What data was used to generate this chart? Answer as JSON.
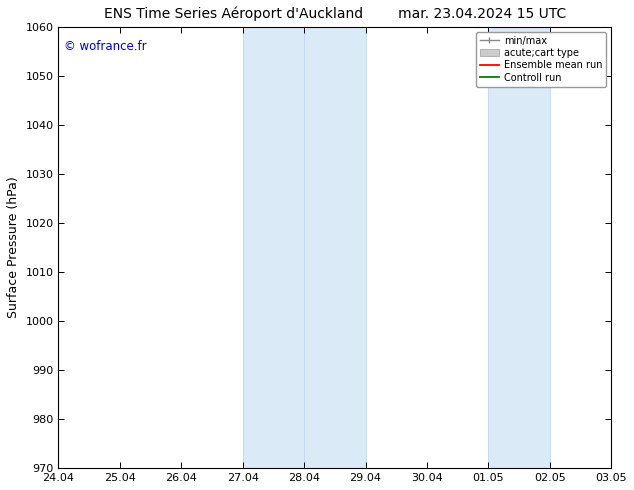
{
  "title_left": "ENS Time Series Aéroport d'Auckland",
  "title_right": "mar. 23.04.2024 15 UTC",
  "ylabel": "Surface Pressure (hPa)",
  "watermark": "© wofrance.fr",
  "watermark_color": "#0000cc",
  "ylim": [
    970,
    1060
  ],
  "yticks": [
    970,
    980,
    990,
    1000,
    1010,
    1020,
    1030,
    1040,
    1050,
    1060
  ],
  "xtick_labels": [
    "24.04",
    "25.04",
    "26.04",
    "27.04",
    "28.04",
    "29.04",
    "30.04",
    "01.05",
    "02.05",
    "03.05"
  ],
  "xtick_positions": [
    0,
    1,
    2,
    3,
    4,
    5,
    6,
    7,
    8,
    9
  ],
  "xlim": [
    0,
    9
  ],
  "shade_regions": [
    {
      "x_start": 3,
      "x_end": 5,
      "color": "#daeaf7"
    },
    {
      "x_start": 7,
      "x_end": 8,
      "color": "#daeaf7"
    }
  ],
  "shade_dividers": [
    3,
    4,
    5,
    7,
    8
  ],
  "legend_items": [
    {
      "label": "min/max",
      "color": "#888888",
      "style": "minmax"
    },
    {
      "label": "acute;cart type",
      "color": "#cccccc",
      "style": "bar"
    },
    {
      "label": "Ensemble mean run",
      "color": "#ff0000",
      "style": "line"
    },
    {
      "label": "Controll run",
      "color": "#008000",
      "style": "line"
    }
  ],
  "background_color": "#ffffff",
  "title_fontsize": 10,
  "axis_fontsize": 9,
  "tick_fontsize": 8
}
